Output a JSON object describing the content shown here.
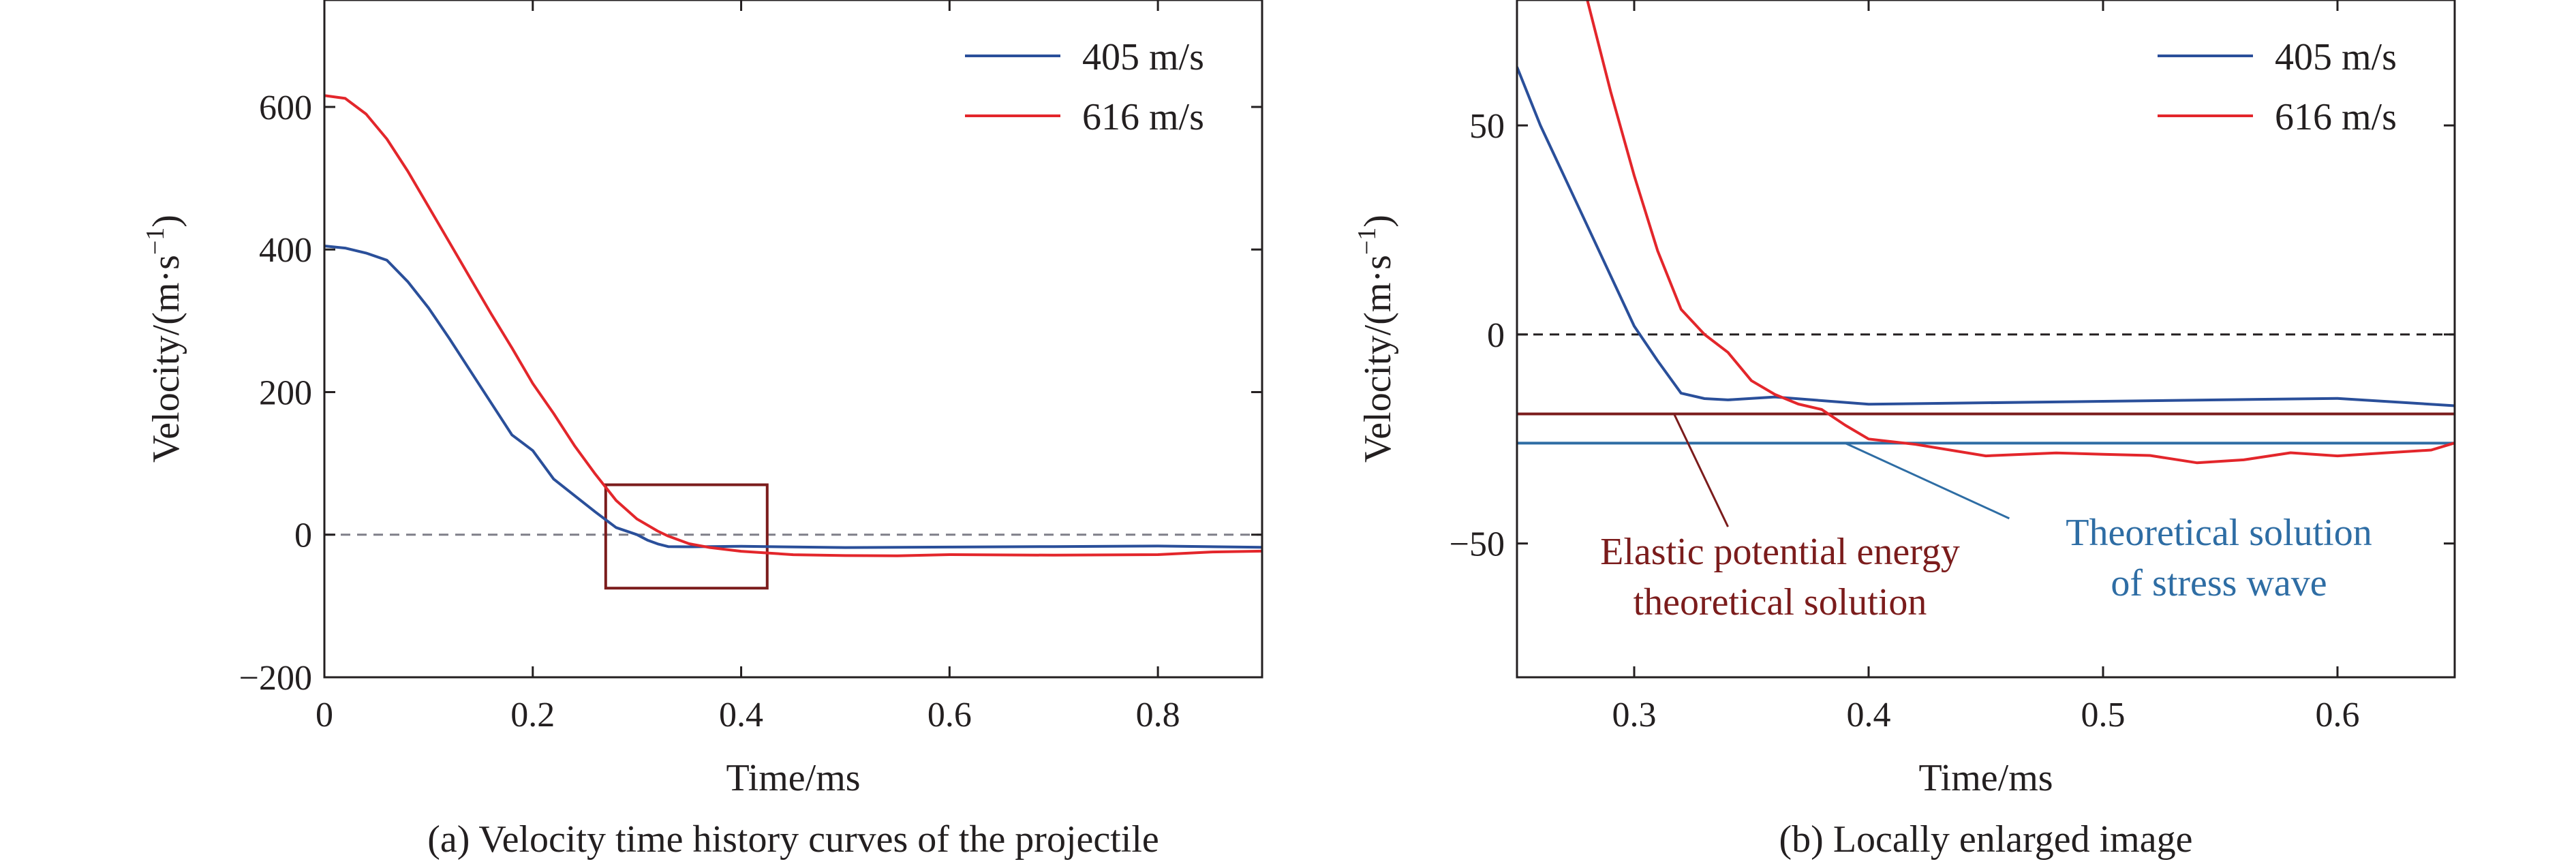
{
  "chart_data": [
    {
      "id": "a",
      "type": "line",
      "caption": "(a) Velocity time history curves of the projectile",
      "xlabel": "Time/ms",
      "ylabel": "Velocity/(m·s",
      "ylabel_sup": "−1",
      "ylabel_close": ")",
      "xlim": [
        0,
        0.9
      ],
      "ylim": [
        -200,
        750
      ],
      "xticks": [
        0,
        0.2,
        0.4,
        0.6,
        0.8
      ],
      "xtick_labels": [
        "0",
        "0.2",
        "0.4",
        "0.6",
        "0.8"
      ],
      "yticks": [
        -200,
        0,
        200,
        400,
        600
      ],
      "ytick_labels": [
        "−200",
        "0",
        "200",
        "400",
        "600"
      ],
      "legend_position": "top-right",
      "zero_line": {
        "y": 0,
        "style": "dashed",
        "color": "#7f7f88"
      },
      "zoom_box": {
        "x0": 0.27,
        "x1": 0.425,
        "y0": -75,
        "y1": 70,
        "color": "#7b1c1c"
      },
      "series": [
        {
          "name": "405 m/s",
          "color": "#2a4f9a",
          "x": [
            0,
            0.02,
            0.04,
            0.06,
            0.08,
            0.1,
            0.12,
            0.14,
            0.16,
            0.18,
            0.2,
            0.22,
            0.24,
            0.26,
            0.28,
            0.3,
            0.31,
            0.32,
            0.33,
            0.35,
            0.4,
            0.5,
            0.6,
            0.7,
            0.8,
            0.9
          ],
          "y": [
            405,
            402,
            395,
            385,
            355,
            318,
            275,
            230,
            185,
            140,
            118,
            78,
            55,
            32,
            10,
            0,
            -8,
            -14,
            -16,
            -17,
            -17,
            -17,
            -17,
            -17,
            -17,
            -17
          ]
        },
        {
          "name": "616 m/s",
          "color": "#e3262b",
          "x": [
            0,
            0.02,
            0.04,
            0.06,
            0.08,
            0.1,
            0.12,
            0.14,
            0.16,
            0.18,
            0.2,
            0.22,
            0.24,
            0.26,
            0.28,
            0.3,
            0.32,
            0.33,
            0.35,
            0.37,
            0.4,
            0.45,
            0.5,
            0.55,
            0.6,
            0.7,
            0.8,
            0.85,
            0.9
          ],
          "y": [
            616,
            612,
            590,
            555,
            510,
            460,
            410,
            360,
            310,
            262,
            212,
            170,
            125,
            85,
            48,
            22,
            5,
            -3,
            -12,
            -18,
            -24,
            -27,
            -29,
            -30,
            -29,
            -28,
            -28,
            -25,
            -22
          ]
        }
      ]
    },
    {
      "id": "b",
      "type": "line",
      "caption": "(b) Locally enlarged image",
      "xlabel": "Time/ms",
      "ylabel": "Velocity/(m·s",
      "ylabel_sup": "−1",
      "ylabel_close": ")",
      "xlim": [
        0.25,
        0.65
      ],
      "ylim": [
        -82,
        80
      ],
      "xticks": [
        0.3,
        0.4,
        0.5,
        0.6
      ],
      "xtick_labels": [
        "0.3",
        "0.4",
        "0.5",
        "0.6"
      ],
      "yticks": [
        -50,
        0,
        50
      ],
      "ytick_labels": [
        "−50",
        "0",
        "50"
      ],
      "legend_position": "top-right",
      "zero_line": {
        "y": 0,
        "style": "dashed",
        "color": "#231f20"
      },
      "reference_lines": [
        {
          "y": -19,
          "color": "#7b1c1c",
          "label_lines": [
            "Elastic potential energy",
            "theoretical solution"
          ],
          "arrow_from": [
            0.34,
            -46
          ],
          "arrow_to": [
            0.317,
            -19
          ]
        },
        {
          "y": -26,
          "color": "#2e6da4",
          "label_lines": [
            "Theoretical solution",
            "of stress wave"
          ],
          "arrow_from": [
            0.46,
            -44
          ],
          "arrow_to": [
            0.39,
            -26
          ]
        }
      ],
      "series": [
        {
          "name": "405 m/s",
          "color": "#2a4f9a",
          "x": [
            0.25,
            0.26,
            0.27,
            0.28,
            0.29,
            0.3,
            0.31,
            0.32,
            0.33,
            0.34,
            0.36,
            0.4,
            0.5,
            0.6,
            0.65
          ],
          "y": [
            64,
            50,
            38,
            26,
            14,
            2,
            -7,
            -13,
            -15,
            -16,
            -16,
            -16,
            -16,
            -16,
            -16
          ]
        },
        {
          "name": "616 m/s",
          "color": "#e3262b",
          "x": [
            0.28,
            0.29,
            0.3,
            0.31,
            0.32,
            0.33,
            0.34,
            0.35,
            0.36,
            0.37,
            0.38,
            0.39,
            0.4,
            0.42,
            0.45,
            0.48,
            0.5,
            0.52,
            0.54,
            0.56,
            0.58,
            0.6,
            0.62,
            0.64,
            0.65
          ],
          "y": [
            80,
            58,
            38,
            20,
            6,
            0,
            -5,
            -10,
            -14,
            -17,
            -19,
            -21,
            -25,
            -27,
            -28,
            -28,
            -29,
            -30,
            -30,
            -30,
            -29,
            -28,
            -28,
            -28,
            -27
          ]
        }
      ]
    }
  ]
}
